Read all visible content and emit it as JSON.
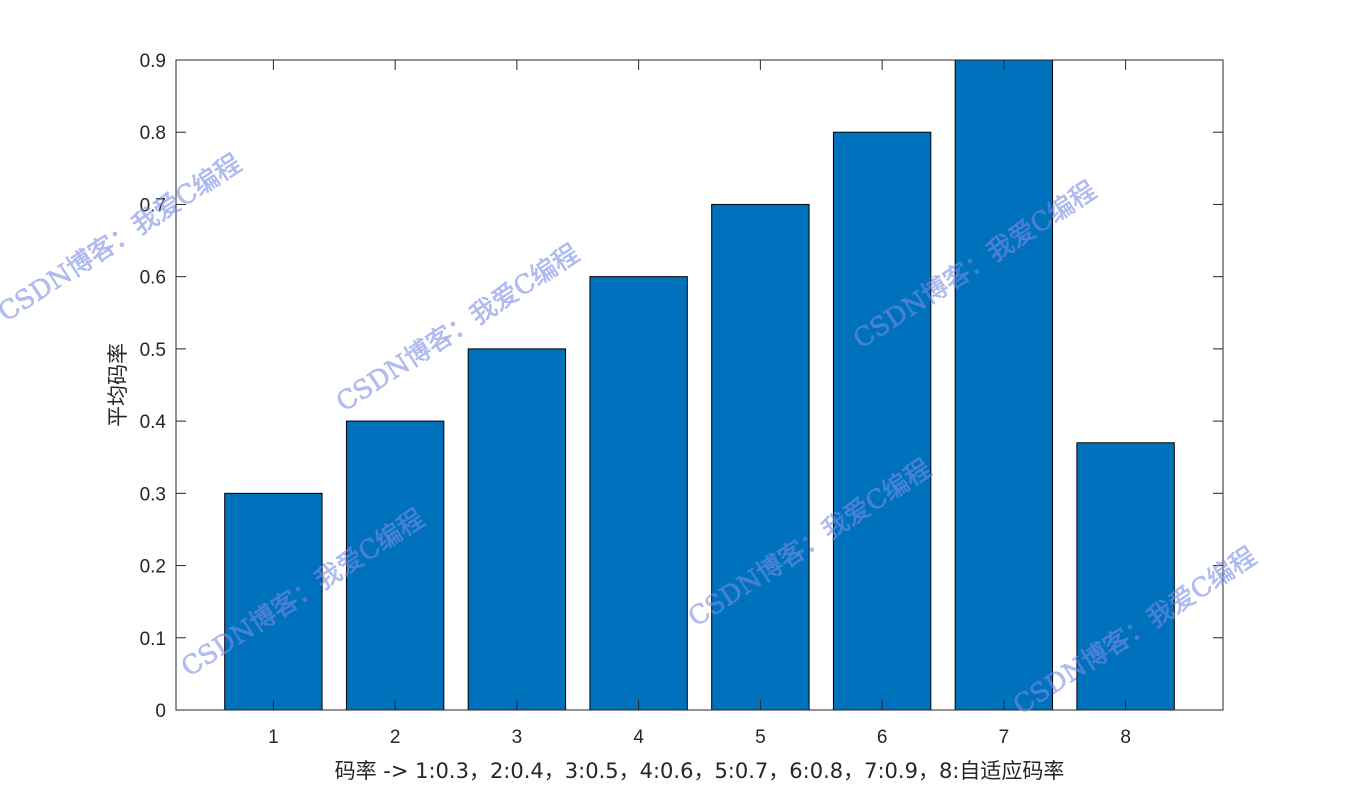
{
  "chart_data": {
    "type": "bar",
    "categories": [
      "1",
      "2",
      "3",
      "4",
      "5",
      "6",
      "7",
      "8"
    ],
    "values": [
      0.3,
      0.4,
      0.5,
      0.6,
      0.7,
      0.8,
      0.9,
      0.37
    ],
    "xlabel": "码率 -> 1:0.3，2:0.4，3:0.5，4:0.6，5:0.7，6:0.8，7:0.9，8:自适应码率",
    "ylabel": "平均码率",
    "xlim": [
      0.2,
      8.8
    ],
    "ylim": [
      0,
      0.9
    ],
    "yticks": [
      "0",
      "0.1",
      "0.2",
      "0.3",
      "0.4",
      "0.5",
      "0.6",
      "0.7",
      "0.8",
      "0.9"
    ],
    "grid": false,
    "bar_color": "#0072BD",
    "bar_edge_color": "#000000"
  },
  "watermark": "CSDN博客：我爱C编程"
}
